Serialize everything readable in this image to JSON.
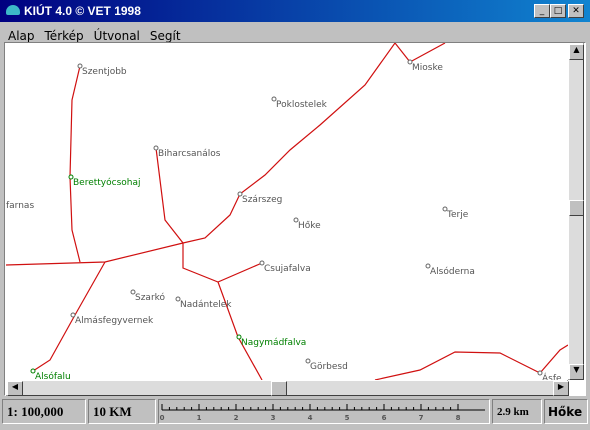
{
  "window": {
    "title": "KIÚT 4.0 © VET 1998"
  },
  "menu": [
    "Alap",
    "Térkép",
    "Útvonal",
    "Segít"
  ],
  "map": {
    "places": [
      "Szentjobb",
      "Mioske",
      "Poklostelek",
      "Biharcsanálos",
      "Berettyócsohaj",
      "farnas",
      "Szárszeg",
      "Terje",
      "Hőke",
      "Csujafalva",
      "Alsóderna",
      "Szarkó",
      "Nadántelek",
      "Almásfegyvernek",
      "Nagymádfalva",
      "Görbesd",
      "Alsófalu",
      "Ásfe"
    ]
  },
  "status": {
    "scale": "1: 100,000",
    "distance_unit": "10 KM",
    "ruler_ticks": [
      0,
      1,
      2,
      3,
      4,
      5,
      6,
      7,
      8
    ],
    "measured": "2.9 km",
    "place": "Hőke"
  }
}
